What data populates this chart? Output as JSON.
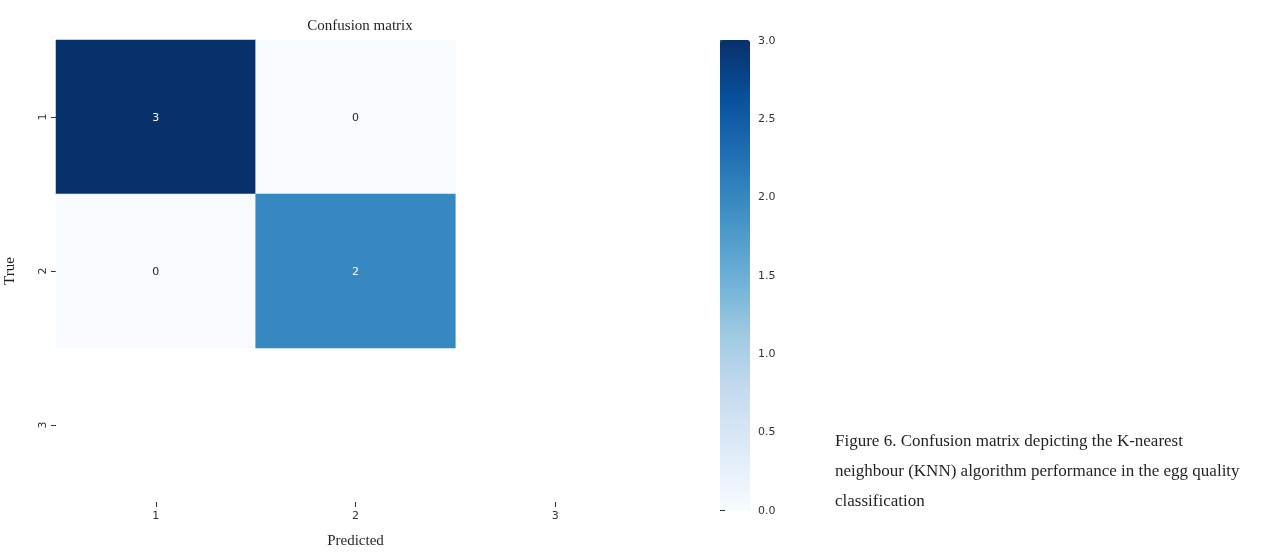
{
  "chart_data": {
    "type": "heatmap",
    "title": "Confusion matrix",
    "xlabel": "Predicted",
    "ylabel": "True",
    "categories": [
      "1",
      "2",
      "3"
    ],
    "y_categories": [
      "1",
      "2",
      "3"
    ],
    "cells": [
      [
        3,
        0,
        null
      ],
      [
        0,
        2,
        null
      ],
      [
        null,
        null,
        null
      ]
    ],
    "clim": [
      0,
      3
    ],
    "cticks": [
      {
        "value": 0,
        "label": "0.0"
      },
      {
        "value": 0.5,
        "label": "0.5"
      },
      {
        "value": 1,
        "label": "1.0"
      },
      {
        "value": 1.5,
        "label": "1.5"
      },
      {
        "value": 2,
        "label": "2.0"
      },
      {
        "value": 2.5,
        "label": "2.5"
      },
      {
        "value": 3,
        "label": "3.0"
      }
    ],
    "data_labels": true,
    "annotations": [
      "Figure 6. Confusion matrix depicting the K-nearest neighbour (KNN) algorithm performance in the egg quality classification"
    ]
  }
}
